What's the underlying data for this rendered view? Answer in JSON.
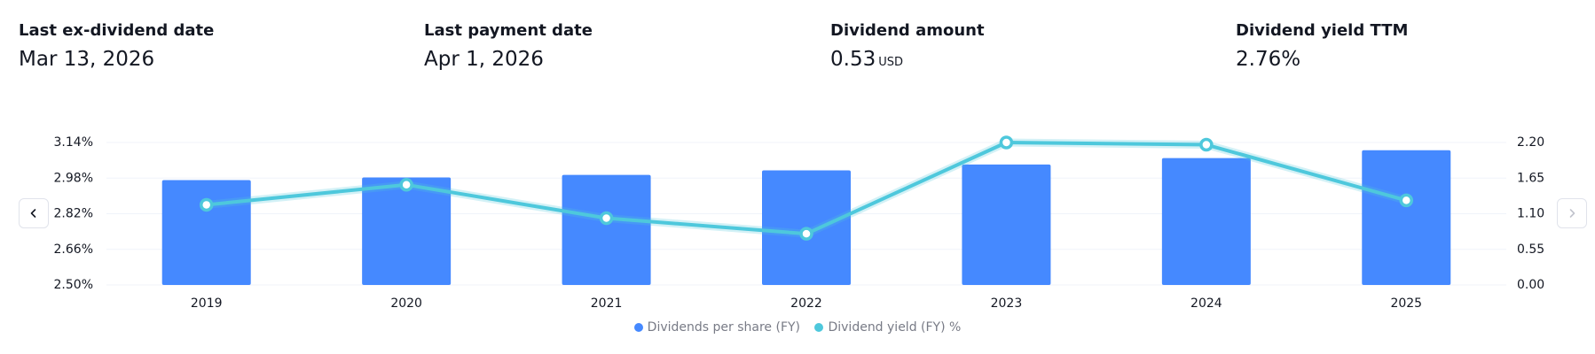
{
  "stats": [
    {
      "label": "Last ex-dividend date",
      "value": "Mar 13, 2026",
      "unit": ""
    },
    {
      "label": "Last payment date",
      "value": "Apr 1, 2026",
      "unit": ""
    },
    {
      "label": "Dividend amount",
      "value": "0.53",
      "unit": "USD"
    },
    {
      "label": "Dividend yield TTM",
      "value": "2.76%",
      "unit": ""
    }
  ],
  "nav": {
    "prev_icon": "chevron-left-icon",
    "next_icon": "chevron-right-icon"
  },
  "colors": {
    "bar": "#4589ff",
    "line": "#4ec8dc",
    "grid": "#f0f3fa",
    "text": "#131722"
  },
  "chart_data": {
    "type": "bar",
    "categories": [
      "2019",
      "2020",
      "2021",
      "2022",
      "2023",
      "2024",
      "2025"
    ],
    "series": [
      {
        "name": "Dividends per share (FY)",
        "type": "bar",
        "axis": "right",
        "values": [
          1.62,
          1.66,
          1.7,
          1.77,
          1.86,
          1.96,
          2.08
        ]
      },
      {
        "name": "Dividend yield (FY) %",
        "type": "line",
        "axis": "left",
        "values": [
          2.86,
          2.95,
          2.8,
          2.73,
          3.14,
          3.13,
          2.88
        ]
      }
    ],
    "left_axis": {
      "ticks": [
        "3.14%",
        "2.98%",
        "2.82%",
        "2.66%",
        "2.50%"
      ],
      "range": [
        2.5,
        3.14
      ]
    },
    "right_axis": {
      "ticks": [
        "2.20",
        "1.65",
        "1.10",
        "0.55",
        "0.00"
      ],
      "range": [
        0,
        2.2
      ]
    },
    "grid": true,
    "legend_position": "bottom-center"
  }
}
